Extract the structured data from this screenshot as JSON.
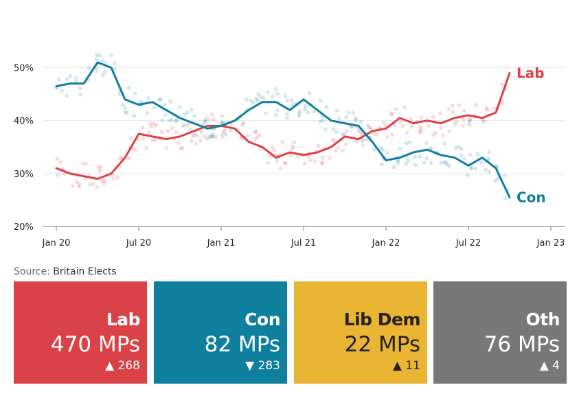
{
  "chart_data": {
    "type": "line",
    "x_axis": {
      "tick_labels": [
        "Jan 20",
        "Jul 20",
        "Jan 21",
        "Jul 21",
        "Jan 22",
        "Jul 22",
        "Jan 23"
      ],
      "ticks": [
        "2020-01",
        "2020-07",
        "2021-01",
        "2021-07",
        "2022-01",
        "2022-07",
        "2023-01"
      ],
      "range": [
        "2019-12",
        "2023-02"
      ]
    },
    "y_axis": {
      "tick_labels": [
        "20%",
        "30%",
        "40%",
        "50%"
      ],
      "ticks": [
        20,
        30,
        40,
        50
      ],
      "range": [
        20,
        55
      ]
    },
    "grid": "horizontal",
    "series": [
      {
        "name": "Lab",
        "color": "#db4247",
        "x": [
          "2020-01",
          "2020-02",
          "2020-03",
          "2020-04",
          "2020-05",
          "2020-06",
          "2020-07",
          "2020-08",
          "2020-09",
          "2020-10",
          "2020-11",
          "2020-12",
          "2021-01",
          "2021-02",
          "2021-03",
          "2021-04",
          "2021-05",
          "2021-06",
          "2021-07",
          "2021-08",
          "2021-09",
          "2021-10",
          "2021-11",
          "2021-12",
          "2022-01",
          "2022-02",
          "2022-03",
          "2022-04",
          "2022-05",
          "2022-06",
          "2022-07",
          "2022-08",
          "2022-09",
          "2022-10"
        ],
        "values": [
          31,
          30,
          29.5,
          29,
          30,
          33,
          37.5,
          37,
          36.5,
          37,
          38,
          39,
          39,
          38.5,
          36,
          35,
          33,
          34,
          33.5,
          34,
          35,
          37,
          36.5,
          38,
          38.5,
          40.5,
          39.5,
          40,
          39.5,
          40.5,
          41,
          40.5,
          41.5,
          49
        ]
      },
      {
        "name": "Con",
        "color": "#0f7f9e",
        "x": [
          "2020-01",
          "2020-02",
          "2020-03",
          "2020-04",
          "2020-05",
          "2020-06",
          "2020-07",
          "2020-08",
          "2020-09",
          "2020-10",
          "2020-11",
          "2020-12",
          "2021-01",
          "2021-02",
          "2021-03",
          "2021-04",
          "2021-05",
          "2021-06",
          "2021-07",
          "2021-08",
          "2021-09",
          "2021-10",
          "2021-11",
          "2021-12",
          "2022-01",
          "2022-02",
          "2022-03",
          "2022-04",
          "2022-05",
          "2022-06",
          "2022-07",
          "2022-08",
          "2022-09",
          "2022-10"
        ],
        "values": [
          46.5,
          47,
          47,
          51,
          50,
          44,
          43,
          43.5,
          42,
          40.5,
          39.5,
          38.5,
          39,
          40,
          42,
          43.5,
          43.5,
          42,
          44,
          42,
          40,
          39.5,
          39,
          36,
          32.5,
          33,
          34,
          34.5,
          33.5,
          33,
          31.5,
          33,
          31,
          25.5
        ]
      }
    ]
  },
  "source": {
    "prefix": "Source:",
    "name": "Britain Elects"
  },
  "cards": [
    {
      "party": "Lab",
      "seats": "470 MPs",
      "arrow": "▲",
      "change": "268",
      "bg": "#db4247",
      "fg": "#ffffff"
    },
    {
      "party": "Con",
      "seats": "82 MPs",
      "arrow": "▼",
      "change": "283",
      "bg": "#0f7f9e",
      "fg": "#ffffff"
    },
    {
      "party": "Lib Dem",
      "seats": "22 MPs",
      "arrow": "▲",
      "change": "11",
      "bg": "#ebb534",
      "fg": "#222222"
    },
    {
      "party": "Oth",
      "seats": "76 MPs",
      "arrow": "▲",
      "change": "4",
      "bg": "#787878",
      "fg": "#ffffff"
    }
  ]
}
